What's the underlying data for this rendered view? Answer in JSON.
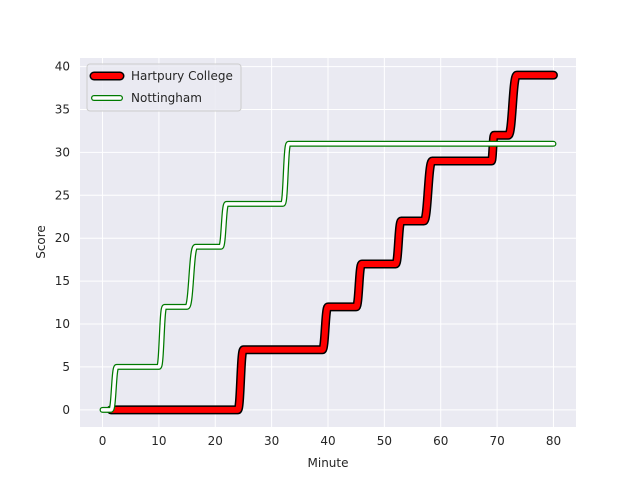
{
  "chart_data": {
    "type": "line",
    "title": "",
    "xlabel": "Minute",
    "ylabel": "Score",
    "xlim": [
      -4,
      84
    ],
    "ylim": [
      -2,
      41
    ],
    "xticks": [
      0,
      10,
      20,
      30,
      40,
      50,
      60,
      70,
      80
    ],
    "yticks": [
      0,
      5,
      10,
      15,
      20,
      25,
      30,
      35,
      40
    ],
    "xtick_labels": [
      "0",
      "10",
      "20",
      "30",
      "40",
      "50",
      "60",
      "70",
      "80"
    ],
    "ytick_labels": [
      "0",
      "5",
      "10",
      "15",
      "20",
      "25",
      "30",
      "35",
      "40"
    ],
    "grid": true,
    "legend_position": "upper-left",
    "series": [
      {
        "name": "Hartpury College",
        "color": "#ff0000",
        "edge_color": "#000000",
        "style": "thick-red-outlined-black",
        "points": [
          [
            1.5,
            0
          ],
          [
            24,
            0
          ],
          [
            25,
            7
          ],
          [
            39,
            7
          ],
          [
            40,
            12
          ],
          [
            45,
            12
          ],
          [
            46,
            17
          ],
          [
            52,
            17
          ],
          [
            53,
            22
          ],
          [
            57,
            22
          ],
          [
            58.5,
            29
          ],
          [
            69,
            29
          ],
          [
            69.5,
            32
          ],
          [
            72,
            32
          ],
          [
            73.5,
            39
          ],
          [
            80,
            39
          ]
        ]
      },
      {
        "name": "Nottingham",
        "color": "#ffffff",
        "edge_color": "#007a00",
        "style": "white-outlined-green",
        "points": [
          [
            0,
            0
          ],
          [
            1.5,
            0
          ],
          [
            2.5,
            5
          ],
          [
            10,
            5
          ],
          [
            11,
            12
          ],
          [
            15,
            12
          ],
          [
            16.5,
            19
          ],
          [
            21,
            19
          ],
          [
            22,
            24
          ],
          [
            32,
            24
          ],
          [
            33,
            31
          ],
          [
            80,
            31
          ]
        ]
      }
    ]
  }
}
